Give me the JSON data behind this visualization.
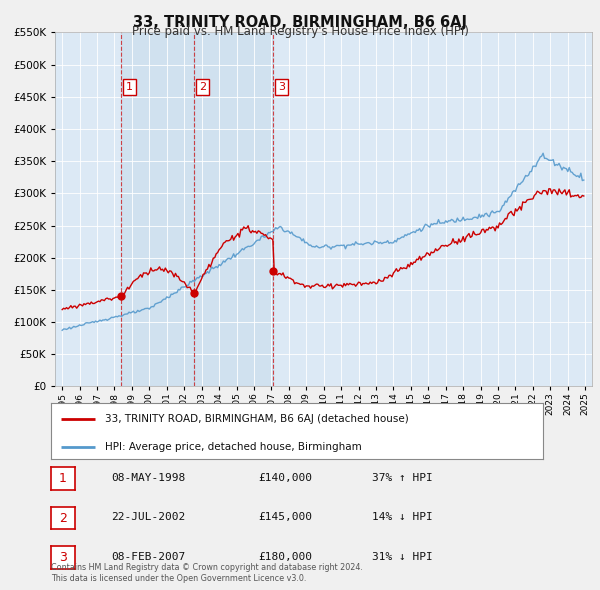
{
  "title": "33, TRINITY ROAD, BIRMINGHAM, B6 6AJ",
  "subtitle": "Price paid vs. HM Land Registry's House Price Index (HPI)",
  "footer1": "Contains HM Land Registry data © Crown copyright and database right 2024.",
  "footer2": "This data is licensed under the Open Government Licence v3.0.",
  "legend_line1": "33, TRINITY ROAD, BIRMINGHAM, B6 6AJ (detached house)",
  "legend_line2": "HPI: Average price, detached house, Birmingham",
  "table": [
    {
      "num": "1",
      "date": "08-MAY-1998",
      "price": "£140,000",
      "hpi": "37% ↑ HPI"
    },
    {
      "num": "2",
      "date": "22-JUL-2002",
      "price": "£145,000",
      "hpi": "14% ↓ HPI"
    },
    {
      "num": "3",
      "date": "08-FEB-2007",
      "price": "£180,000",
      "hpi": "31% ↓ HPI"
    }
  ],
  "sale_dates": [
    1998.35,
    2002.55,
    2007.09
  ],
  "sale_prices": [
    140000,
    145000,
    180000
  ],
  "ylim": [
    0,
    550000
  ],
  "yticks": [
    0,
    50000,
    100000,
    150000,
    200000,
    250000,
    300000,
    350000,
    400000,
    450000,
    500000,
    550000
  ],
  "bg_color": "#f0f0f0",
  "plot_bg": "#dce9f5",
  "grid_color": "#ffffff",
  "red_color": "#cc0000",
  "blue_color": "#5599cc",
  "shade_color": "#c8ddf0"
}
